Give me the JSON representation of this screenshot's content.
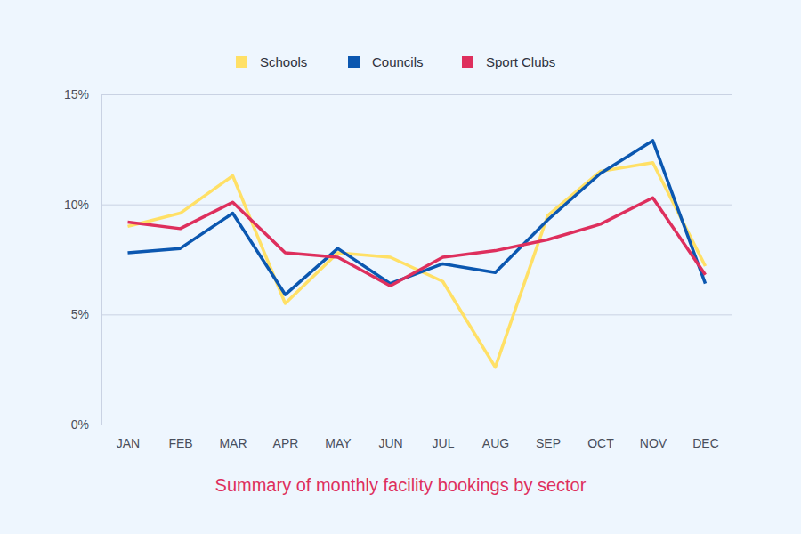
{
  "chart_data": {
    "type": "line",
    "title": "Summary of monthly facility bookings by sector",
    "categories": [
      "JAN",
      "FEB",
      "MAR",
      "APR",
      "MAY",
      "JUN",
      "JUL",
      "AUG",
      "SEP",
      "OCT",
      "NOV",
      "DEC"
    ],
    "series": [
      {
        "name": "Schools",
        "color": "#FFE066",
        "values": [
          9.0,
          9.6,
          11.3,
          5.5,
          7.8,
          7.6,
          6.5,
          2.6,
          9.5,
          11.5,
          11.9,
          7.2
        ]
      },
      {
        "name": "Councils",
        "color": "#0B57B0",
        "values": [
          7.8,
          8.0,
          9.6,
          5.9,
          8.0,
          6.4,
          7.3,
          6.9,
          9.3,
          11.4,
          12.9,
          6.4
        ]
      },
      {
        "name": "Sport Clubs",
        "color": "#DE2F5D",
        "values": [
          9.2,
          8.9,
          10.1,
          7.8,
          7.6,
          6.3,
          7.6,
          7.9,
          8.4,
          9.1,
          10.3,
          6.8
        ]
      }
    ],
    "ylim": [
      0,
      15
    ],
    "yticks": [
      {
        "value": 0,
        "label": "0%"
      },
      {
        "value": 5,
        "label": "5%"
      },
      {
        "value": 10,
        "label": "10%"
      },
      {
        "value": 15,
        "label": "15%"
      }
    ],
    "grid": true,
    "legend": "top"
  }
}
